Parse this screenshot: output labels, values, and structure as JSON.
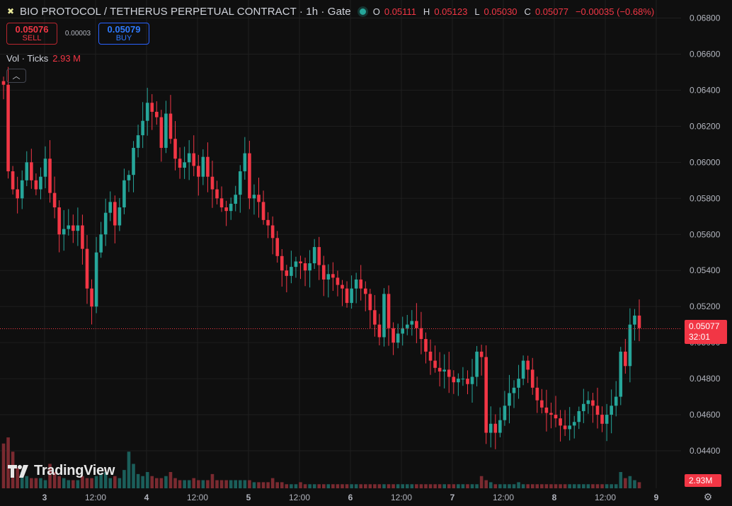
{
  "header": {
    "symbol_title": "BIO PROTOCOL / TETHERUS PERPETUAL CONTRACT · 1h · Gate",
    "open_key": "O",
    "open": "0.05111",
    "high_key": "H",
    "high": "0.05123",
    "low_key": "L",
    "low": "0.05030",
    "close_key": "C",
    "close": "0.05077",
    "change": "−0.00035 (−0.68%)"
  },
  "trade": {
    "sell_price": "0.05076",
    "sell_label": "SELL",
    "spread": "0.00003",
    "buy_price": "0.05079",
    "buy_label": "BUY"
  },
  "volume_legend": {
    "label": "Vol · Ticks",
    "value": "2.93 M"
  },
  "watermark": "TradingView",
  "price_label": {
    "price": "0.05077",
    "countdown": "32:01"
  },
  "volume_label": "2.93M",
  "colors": {
    "up": "#26a69a",
    "down": "#f23645",
    "up_volume": "#1b5e5a",
    "down_volume": "#7a2a30",
    "grid": "#1f1f1f",
    "background": "#0f0f0f"
  },
  "icons": {
    "logo": "bio-logo-icon",
    "status": "market-open-dot-icon",
    "collapse": "chevron-up-icon",
    "settings": "gear-icon"
  },
  "chart_data": {
    "type": "candlestick",
    "y_ticks": [
      "0.06800",
      "0.06600",
      "0.06400",
      "0.06200",
      "0.06000",
      "0.05800",
      "0.05600",
      "0.05400",
      "0.05200",
      "0.05000",
      "0.04800",
      "0.04600",
      "0.04400"
    ],
    "x_ticks": [
      "3",
      "12:00",
      "4",
      "12:00",
      "5",
      "12:00",
      "6",
      "12:00",
      "7",
      "12:00",
      "8",
      "12:00",
      "9"
    ],
    "ylim": [
      0.043,
      0.069
    ],
    "last_price": 0.05077,
    "closes": [
      0.0643,
      0.0595,
      0.0585,
      0.058,
      0.059,
      0.06,
      0.059,
      0.0585,
      0.0592,
      0.0602,
      0.0583,
      0.0575,
      0.056,
      0.0563,
      0.0565,
      0.0562,
      0.0565,
      0.0552,
      0.053,
      0.052,
      0.055,
      0.056,
      0.0572,
      0.0578,
      0.0565,
      0.0575,
      0.059,
      0.0593,
      0.0608,
      0.0615,
      0.0623,
      0.0633,
      0.0628,
      0.0625,
      0.0608,
      0.0627,
      0.0613,
      0.0602,
      0.0597,
      0.06,
      0.0605,
      0.0598,
      0.0592,
      0.0603,
      0.0592,
      0.0585,
      0.058,
      0.0575,
      0.0573,
      0.0577,
      0.0582,
      0.0595,
      0.0605,
      0.058,
      0.0582,
      0.0578,
      0.0568,
      0.0565,
      0.0558,
      0.0548,
      0.054,
      0.0537,
      0.0542,
      0.0545,
      0.0544,
      0.054,
      0.0544,
      0.0553,
      0.0543,
      0.0535,
      0.0538,
      0.0536,
      0.0532,
      0.053,
      0.0522,
      0.053,
      0.0535,
      0.053,
      0.0527,
      0.0518,
      0.051,
      0.0503,
      0.0527,
      0.0508,
      0.05,
      0.0505,
      0.0508,
      0.051,
      0.0512,
      0.0508,
      0.0502,
      0.0495,
      0.049,
      0.0486,
      0.0484,
      0.0485,
      0.0481,
      0.0478,
      0.048,
      0.048,
      0.0477,
      0.0481,
      0.0495,
      0.0492,
      0.045,
      0.0455,
      0.045,
      0.0457,
      0.0465,
      0.0472,
      0.0475,
      0.048,
      0.049,
      0.0485,
      0.0475,
      0.0468,
      0.0464,
      0.0461,
      0.046,
      0.0458,
      0.0454,
      0.0452,
      0.0454,
      0.0456,
      0.0462,
      0.0466,
      0.0468,
      0.0465,
      0.046,
      0.0455,
      0.046,
      0.0465,
      0.047,
      0.0495,
      0.0487,
      0.051,
      0.0515,
      0.0508
    ],
    "volumes": [
      0.22,
      0.25,
      0.18,
      0.1,
      0.08,
      0.06,
      0.05,
      0.05,
      0.05,
      0.04,
      0.12,
      0.08,
      0.06,
      0.05,
      0.04,
      0.04,
      0.04,
      0.06,
      0.05,
      0.05,
      0.06,
      0.07,
      0.08,
      0.05,
      0.06,
      0.05,
      0.09,
      0.18,
      0.12,
      0.07,
      0.06,
      0.08,
      0.06,
      0.05,
      0.05,
      0.06,
      0.08,
      0.05,
      0.04,
      0.04,
      0.04,
      0.05,
      0.04,
      0.04,
      0.04,
      0.07,
      0.04,
      0.04,
      0.04,
      0.04,
      0.04,
      0.04,
      0.04,
      0.04,
      0.03,
      0.03,
      0.03,
      0.03,
      0.05,
      0.03,
      0.03,
      0.02,
      0.02,
      0.02,
      0.03,
      0.02,
      0.02,
      0.02,
      0.02,
      0.02,
      0.02,
      0.02,
      0.02,
      0.02,
      0.02,
      0.02,
      0.02,
      0.02,
      0.02,
      0.02,
      0.02,
      0.02,
      0.02,
      0.02,
      0.02,
      0.02,
      0.02,
      0.02,
      0.02,
      0.02,
      0.02,
      0.02,
      0.02,
      0.02,
      0.02,
      0.02,
      0.02,
      0.02,
      0.02,
      0.02,
      0.02,
      0.02,
      0.02,
      0.06,
      0.04,
      0.03,
      0.02,
      0.02,
      0.02,
      0.02,
      0.02,
      0.03,
      0.02,
      0.02,
      0.02,
      0.02,
      0.02,
      0.02,
      0.02,
      0.02,
      0.02,
      0.02,
      0.02,
      0.02,
      0.02,
      0.02,
      0.02,
      0.02,
      0.02,
      0.02,
      0.02,
      0.02,
      0.02,
      0.08,
      0.05,
      0.06,
      0.04,
      0.03
    ]
  }
}
